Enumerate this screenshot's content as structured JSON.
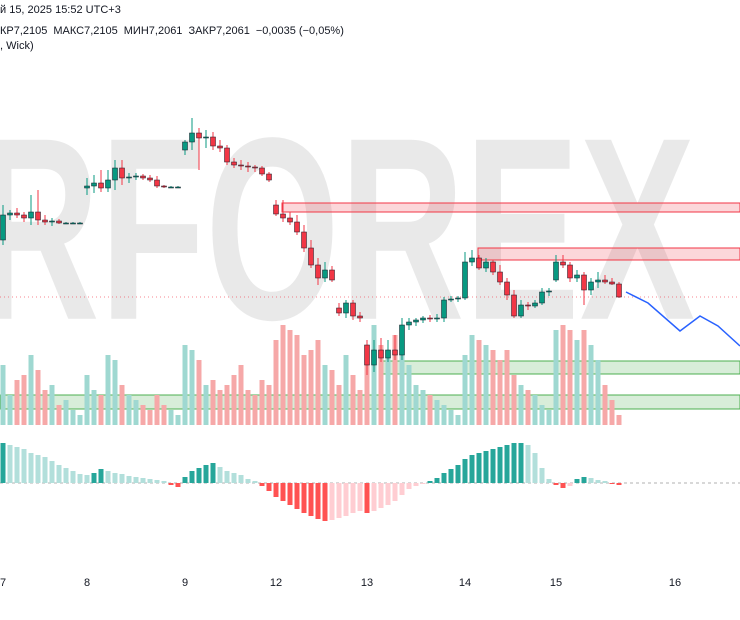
{
  "chart_data": {
    "type": "candlestick",
    "watermark": "RFOREX",
    "header_date": "й 15, 2025 15:52 UTC+3",
    "header_values": [
      "КР7,2105",
      "МАКС7,2105",
      "МИН7,2061",
      "ЗАКР7,2061",
      "−0,0035 (−0,05%)"
    ],
    "header_style": ", Wick)",
    "categories": [
      "7",
      null,
      null,
      null,
      null,
      null,
      null,
      null,
      null,
      null,
      null,
      null,
      "8",
      null,
      null,
      null,
      null,
      null,
      null,
      null,
      null,
      null,
      null,
      null,
      null,
      null,
      "9",
      null,
      null,
      null,
      null,
      null,
      null,
      null,
      null,
      null,
      null,
      null,
      null,
      "12",
      null,
      null,
      null,
      null,
      null,
      null,
      null,
      null,
      null,
      null,
      null,
      null,
      "13",
      null,
      null,
      null,
      null,
      null,
      null,
      null,
      null,
      null,
      null,
      null,
      null,
      null,
      "14",
      null,
      null,
      null,
      null,
      null,
      null,
      null,
      null,
      null,
      null,
      null,
      null,
      "15",
      null,
      null,
      null,
      null,
      null,
      null,
      null,
      null,
      null,
      null,
      null,
      null,
      null,
      null,
      null,
      null,
      "16",
      null,
      null,
      null,
      null,
      null,
      null,
      null,
      null,
      null
    ],
    "open": [
      7.212,
      7.2145,
      7.2147,
      7.2145,
      7.2142,
      7.2148,
      7.214,
      7.2138,
      7.2139,
      7.2137,
      7.2137,
      7.2137,
      7.2172,
      7.2174,
      7.2177,
      7.2172,
      7.218,
      7.2192,
      7.2182,
      7.2183,
      7.2184,
      7.2182,
      7.218,
      7.2174,
      7.2173,
      7.2173,
      7.221,
      7.2218,
      7.2227,
      7.2222,
      7.2223,
      7.2214,
      7.2212,
      7.2198,
      7.2195,
      7.2194,
      7.2193,
      7.2192,
      7.2186,
      7.2155,
      7.2146,
      7.2142,
      7.2138,
      7.2128,
      7.2112,
      7.2095,
      7.2082,
      7.209,
      7.2052,
      7.2047,
      7.2057,
      7.2044,
      7.2015,
      7.1995,
      7.201,
      7.2002,
      7.201,
      7.2005,
      7.2035,
      7.2038,
      7.204,
      7.2042,
      7.2041,
      7.2042,
      7.206,
      7.2061,
      7.2062,
      7.2098,
      7.2102,
      7.2092,
      7.2098,
      7.2088,
      7.2078,
      7.2065,
      7.2044,
      7.2055,
      7.2054,
      7.2057,
      7.2068,
      7.208,
      7.2098,
      7.2095,
      7.2082,
      7.2085,
      7.207,
      7.2078,
      7.208,
      7.2078,
      7.2076,
      null,
      null,
      null,
      null,
      null,
      null,
      null,
      null,
      null,
      null,
      null,
      null,
      null,
      null,
      null,
      null,
      null
    ],
    "high": [
      7.2155,
      7.215,
      7.2152,
      7.2148,
      7.2165,
      7.217,
      7.2145,
      7.2142,
      7.2141,
      7.2138,
      7.2138,
      7.2138,
      7.2182,
      7.2185,
      7.219,
      7.219,
      7.22,
      7.22,
      7.2187,
      7.2187,
      7.2186,
      7.2185,
      7.2184,
      7.2175,
      7.2174,
      7.2174,
      7.222,
      7.2242,
      7.2232,
      7.223,
      7.2228,
      7.222,
      7.2215,
      7.2202,
      7.22,
      7.2198,
      7.2195,
      7.2194,
      7.2188,
      7.216,
      7.216,
      7.2148,
      7.2145,
      7.2135,
      7.212,
      7.2102,
      7.2098,
      7.2094,
      7.2057,
      7.206,
      7.206,
      7.2048,
      7.202,
      7.202,
      7.2022,
      7.202,
      7.2025,
      7.2042,
      7.2042,
      7.2042,
      7.2044,
      7.2045,
      7.2046,
      7.2063,
      7.2064,
      7.2064,
      7.2108,
      7.211,
      7.2105,
      7.2102,
      7.21,
      7.2095,
      7.2082,
      7.207,
      7.206,
      7.2058,
      7.206,
      7.2072,
      7.2072,
      7.2105,
      7.2105,
      7.2098,
      7.209,
      7.2088,
      7.2082,
      7.2088,
      7.2085,
      7.2082,
      7.2078,
      null,
      null,
      null,
      null,
      null,
      null,
      null,
      null,
      null,
      null,
      null,
      null,
      null,
      null,
      null,
      null,
      null
    ],
    "low": [
      7.2115,
      7.214,
      7.2142,
      7.2138,
      7.2135,
      7.2135,
      7.2135,
      7.2134,
      7.2136,
      7.2136,
      7.2136,
      7.2136,
      7.2165,
      7.2167,
      7.2168,
      7.2168,
      7.217,
      7.2175,
      7.2177,
      7.218,
      7.218,
      7.2178,
      7.2172,
      7.2172,
      7.2172,
      7.2172,
      7.2205,
      7.221,
      7.219,
      7.2212,
      7.221,
      7.2208,
      7.2195,
      7.2192,
      7.219,
      7.2188,
      7.2188,
      7.2184,
      7.2178,
      7.2144,
      7.2138,
      7.2135,
      7.2125,
      7.2108,
      7.2092,
      7.2075,
      7.2078,
      7.2078,
      7.2044,
      7.2042,
      7.204,
      7.2038,
      7.1985,
      7.1988,
      7.1998,
      7.1998,
      7.2,
      7.2,
      7.203,
      7.2034,
      7.2037,
      7.2038,
      7.2038,
      7.2038,
      7.2058,
      7.2058,
      7.206,
      7.2094,
      7.209,
      7.2088,
      7.2085,
      7.2075,
      7.206,
      7.2042,
      7.2042,
      7.205,
      7.2052,
      7.2055,
      7.2064,
      7.2078,
      7.2092,
      7.2078,
      7.2078,
      7.2055,
      7.2065,
      7.2072,
      7.2076,
      7.2075,
      7.2062,
      null,
      null,
      null,
      null,
      null,
      null,
      null,
      null,
      null,
      null,
      null,
      null,
      null,
      null,
      null,
      null,
      null
    ],
    "close": [
      7.2145,
      7.2147,
      7.2145,
      7.2142,
      7.2148,
      7.214,
      7.2138,
      7.2139,
      7.2137,
      7.2137,
      7.2137,
      7.2137,
      7.2174,
      7.2177,
      7.2172,
      7.218,
      7.2192,
      7.2182,
      7.2183,
      7.2184,
      7.2182,
      7.218,
      7.2174,
      7.2173,
      7.2173,
      7.2173,
      7.2218,
      7.2227,
      7.2222,
      7.2223,
      7.2214,
      7.2212,
      7.2198,
      7.2195,
      7.2194,
      7.2193,
      7.2192,
      7.2186,
      7.218,
      7.2146,
      7.2142,
      7.2138,
      7.2128,
      7.2112,
      7.2095,
      7.2082,
      7.209,
      7.208,
      7.2047,
      7.2057,
      7.2044,
      7.2042,
      7.1995,
      7.201,
      7.2002,
      7.201,
      7.2005,
      7.2035,
      7.2038,
      7.204,
      7.2042,
      7.2041,
      7.2042,
      7.206,
      7.2061,
      7.2062,
      7.2098,
      7.2102,
      7.2092,
      7.2098,
      7.2088,
      7.2078,
      7.2065,
      7.2044,
      7.2055,
      7.2054,
      7.2057,
      7.2068,
      7.2069,
      7.2098,
      7.2095,
      7.2082,
      7.2085,
      7.207,
      7.2078,
      7.208,
      7.2078,
      7.2076,
      7.2063,
      null,
      null,
      null,
      null,
      null,
      null,
      null,
      null,
      null,
      null,
      null,
      null,
      null,
      null,
      null,
      null,
      null
    ],
    "volume": [
      60,
      30,
      45,
      50,
      70,
      55,
      35,
      40,
      20,
      25,
      15,
      10,
      50,
      35,
      30,
      70,
      65,
      40,
      30,
      25,
      20,
      15,
      30,
      20,
      15,
      10,
      80,
      75,
      65,
      40,
      45,
      35,
      40,
      50,
      60,
      35,
      30,
      45,
      40,
      85,
      100,
      95,
      90,
      70,
      75,
      85,
      60,
      55,
      40,
      70,
      50,
      35,
      75,
      100,
      80,
      70,
      90,
      85,
      60,
      40,
      35,
      30,
      25,
      20,
      15,
      10,
      70,
      90,
      85,
      80,
      75,
      65,
      75,
      50,
      40,
      35,
      30,
      20,
      15,
      95,
      100,
      95,
      85,
      95,
      80,
      65,
      40,
      25,
      10,
      null,
      null,
      null,
      null,
      null,
      null,
      null,
      null,
      null,
      null,
      null,
      null,
      null,
      null,
      null,
      null,
      null
    ],
    "histogram": [
      40,
      38,
      36,
      34,
      30,
      28,
      26,
      22,
      18,
      15,
      12,
      9,
      8,
      10,
      14,
      12,
      10,
      9,
      7,
      6,
      5,
      4,
      3,
      2,
      -2,
      -4,
      6,
      12,
      15,
      18,
      20,
      16,
      12,
      10,
      8,
      4,
      2,
      -3,
      -8,
      -14,
      -18,
      -22,
      -26,
      -30,
      -33,
      -36,
      -38,
      -37,
      -35,
      -33,
      -30,
      -28,
      -30,
      -28,
      -25,
      -22,
      -18,
      -12,
      -6,
      -3,
      -1,
      2,
      5,
      10,
      14,
      18,
      24,
      28,
      30,
      32,
      34,
      36,
      38,
      40,
      40,
      38,
      30,
      15,
      4,
      -2,
      -5,
      -3,
      4,
      6,
      5,
      3,
      2,
      -1,
      -2,
      null,
      null,
      null,
      null,
      null,
      null,
      null,
      null,
      null,
      null,
      null,
      null,
      null,
      null,
      null,
      null,
      null
    ],
    "ylim": [
      7.193,
      7.236
    ],
    "volume_ylim": [
      0,
      100
    ],
    "histogram_ylim": [
      -47,
      53
    ],
    "up_color": "#089981",
    "down_color": "#f23645",
    "volume_up_color": "#9fd8d1",
    "volume_down_color": "#f6a8a8",
    "histogram_colors": {
      "pos_up": "#26a69a",
      "pos_down": "#b2dfdb",
      "neg_down": "#ff5252",
      "neg_up": "#ffcdd2"
    }
  }
}
